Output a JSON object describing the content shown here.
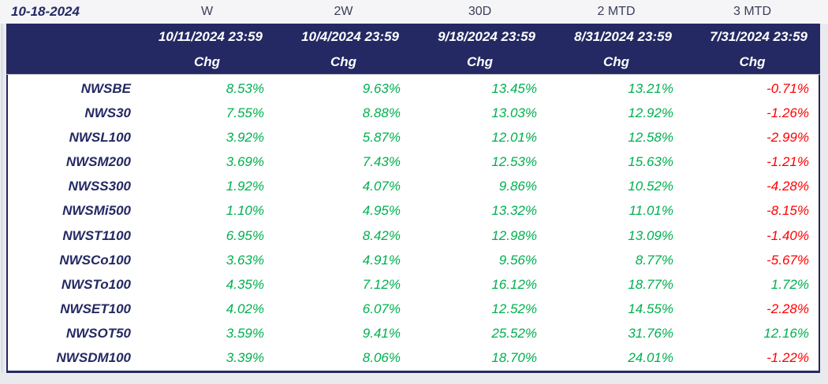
{
  "report": {
    "as_of_date": "10-18-2024",
    "columns": [
      {
        "period": "W",
        "date": "10/11/2024 23:59",
        "measure": "Chg"
      },
      {
        "period": "2W",
        "date": "10/4/2024 23:59",
        "measure": "Chg"
      },
      {
        "period": "30D",
        "date": "9/18/2024 23:59",
        "measure": "Chg"
      },
      {
        "period": "2 MTD",
        "date": "8/31/2024 23:59",
        "measure": "Chg"
      },
      {
        "period": "3 MTD",
        "date": "7/31/2024 23:59",
        "measure": "Chg"
      }
    ],
    "rows": [
      {
        "index": "NWSBE",
        "values": [
          "8.53%",
          "9.63%",
          "13.45%",
          "13.21%",
          "-0.71%"
        ]
      },
      {
        "index": "NWS30",
        "values": [
          "7.55%",
          "8.88%",
          "13.03%",
          "12.92%",
          "-1.26%"
        ]
      },
      {
        "index": "NWSL100",
        "values": [
          "3.92%",
          "5.87%",
          "12.01%",
          "12.58%",
          "-2.99%"
        ]
      },
      {
        "index": "NWSM200",
        "values": [
          "3.69%",
          "7.43%",
          "12.53%",
          "15.63%",
          "-1.21%"
        ]
      },
      {
        "index": "NWSS300",
        "values": [
          "1.92%",
          "4.07%",
          "9.86%",
          "10.52%",
          "-4.28%"
        ]
      },
      {
        "index": "NWSMi500",
        "values": [
          "1.10%",
          "4.95%",
          "13.32%",
          "11.01%",
          "-8.15%"
        ]
      },
      {
        "index": "NWST1100",
        "values": [
          "6.95%",
          "8.42%",
          "12.98%",
          "13.09%",
          "-1.40%"
        ]
      },
      {
        "index": "NWSCo100",
        "values": [
          "3.63%",
          "4.91%",
          "9.56%",
          "8.77%",
          "-5.67%"
        ]
      },
      {
        "index": "NWSTo100",
        "values": [
          "4.35%",
          "7.12%",
          "16.12%",
          "18.77%",
          "1.72%"
        ]
      },
      {
        "index": "NWSET100",
        "values": [
          "4.02%",
          "6.07%",
          "12.52%",
          "14.55%",
          "-2.28%"
        ]
      },
      {
        "index": "NWSOT50",
        "values": [
          "3.59%",
          "9.41%",
          "25.52%",
          "31.76%",
          "12.16%"
        ]
      },
      {
        "index": "NWSDM100",
        "values": [
          "3.39%",
          "8.06%",
          "18.70%",
          "24.01%",
          "-1.22%"
        ]
      }
    ],
    "colors": {
      "header_background": "#242963",
      "positive": "#00B050",
      "negative": "#FF0000"
    }
  }
}
